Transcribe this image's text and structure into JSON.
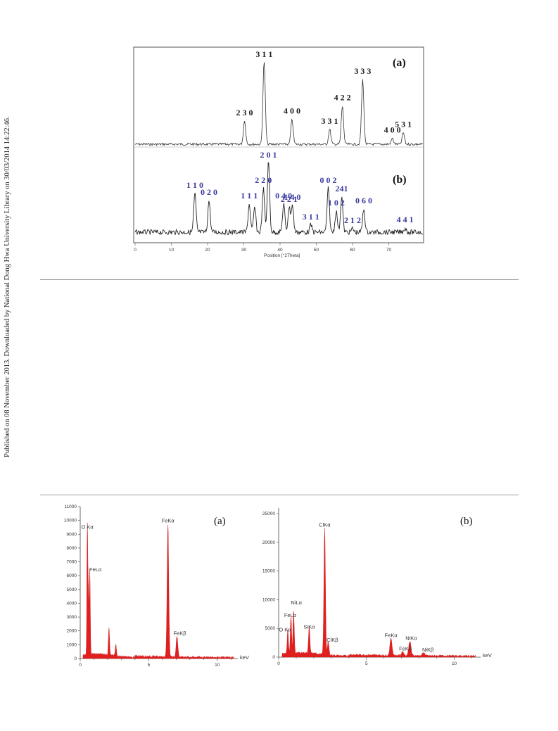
{
  "side_note": "Published on 08 November 2013. Downloaded by National Dong Hwa University Library on 30/03/2014 14:22:46.",
  "xrd": {
    "x_axis_title": "Position [°2Theta]",
    "x_ticks": [
      "0",
      "10",
      "20",
      "30",
      "40",
      "50",
      "60",
      "70"
    ],
    "panel_a": {
      "tag": "(a)",
      "peaks": [
        {
          "two_theta": 30.2,
          "height": 0.28,
          "label": "2 3 0"
        },
        {
          "two_theta": 35.6,
          "height": 1.0,
          "label": "3 1 1"
        },
        {
          "two_theta": 43.3,
          "height": 0.3,
          "label": "4 0 0"
        },
        {
          "two_theta": 53.7,
          "height": 0.18,
          "label": "3 3 1"
        },
        {
          "two_theta": 57.2,
          "height": 0.46,
          "label": "4 2 2"
        },
        {
          "two_theta": 62.8,
          "height": 0.78,
          "label": "3 3 3"
        },
        {
          "two_theta": 71.0,
          "height": 0.07,
          "label": "4 0 0"
        },
        {
          "two_theta": 74.0,
          "height": 0.14,
          "label": "5 3 1"
        }
      ]
    },
    "panel_b": {
      "tag": "(b)",
      "peaks": [
        {
          "two_theta": 16.5,
          "height": 0.55,
          "label": "1 1 0"
        },
        {
          "two_theta": 20.4,
          "height": 0.45,
          "label": "0 2 0"
        },
        {
          "two_theta": 31.5,
          "height": 0.4,
          "label": "1 1 1"
        },
        {
          "two_theta": 33.0,
          "height": 0.35,
          "label": ""
        },
        {
          "two_theta": 35.4,
          "height": 0.62,
          "label": "2 2 0"
        },
        {
          "two_theta": 36.8,
          "height": 1.0,
          "label": "2 0 1"
        },
        {
          "two_theta": 41.0,
          "height": 0.4,
          "label": "0 4 0"
        },
        {
          "two_theta": 42.5,
          "height": 0.35,
          "label": "2 2 1"
        },
        {
          "two_theta": 43.4,
          "height": 0.38,
          "label": "1 4 0"
        },
        {
          "two_theta": 48.5,
          "height": 0.1,
          "label": "3 1 1"
        },
        {
          "two_theta": 53.3,
          "height": 0.62,
          "label": "0 0 2"
        },
        {
          "two_theta": 55.5,
          "height": 0.3,
          "label": "1 0 2"
        },
        {
          "two_theta": 57.0,
          "height": 0.5,
          "label": "241"
        },
        {
          "two_theta": 60.0,
          "height": 0.05,
          "label": "2 1 2"
        },
        {
          "two_theta": 63.1,
          "height": 0.33,
          "label": "0 6 0"
        },
        {
          "two_theta": 74.5,
          "height": 0.06,
          "label": "4 4 1"
        }
      ]
    }
  },
  "eds_a": {
    "tag": "(a)",
    "unit": "keV",
    "y_ticks": [
      "0",
      "1000",
      "2000",
      "3000",
      "4000",
      "5000",
      "6000",
      "7000",
      "8000",
      "9000",
      "10000",
      "11000"
    ],
    "x_ticks": [
      "0",
      "5",
      "10"
    ],
    "chart_data": {
      "type": "area",
      "ylim": [
        0,
        11000
      ],
      "xlim": [
        0,
        11.5
      ],
      "peaks": [
        {
          "kev": 0.52,
          "counts": 9200,
          "label": "O Kα"
        },
        {
          "kev": 0.6,
          "counts": 4300,
          "label": ""
        },
        {
          "kev": 0.7,
          "counts": 6100,
          "label": "FeLα"
        },
        {
          "kev": 2.1,
          "counts": 2000,
          "label": ""
        },
        {
          "kev": 2.6,
          "counts": 800,
          "label": ""
        },
        {
          "kev": 6.4,
          "counts": 9600,
          "label": "FeKα"
        },
        {
          "kev": 7.06,
          "counts": 1500,
          "label": "FeKβ"
        }
      ]
    }
  },
  "eds_b": {
    "tag": "(b)",
    "unit": "keV",
    "y_ticks": [
      "0",
      "5000",
      "10000",
      "15000",
      "20000",
      "25000"
    ],
    "x_ticks": [
      "0",
      "5",
      "10"
    ],
    "chart_data": {
      "type": "area",
      "ylim": [
        0,
        26000
      ],
      "xlim": [
        0,
        11.5
      ],
      "peaks": [
        {
          "kev": 0.52,
          "counts": 4000,
          "label": "O Kα"
        },
        {
          "kev": 0.7,
          "counts": 6500,
          "label": "FeLα"
        },
        {
          "kev": 0.85,
          "counts": 7500,
          "label": "NiLα"
        },
        {
          "kev": 1.74,
          "counts": 4500,
          "label": "SiKα"
        },
        {
          "kev": 2.62,
          "counts": 22000,
          "label": "ClKα"
        },
        {
          "kev": 2.82,
          "counts": 2200,
          "label": "ClKβ"
        },
        {
          "kev": 6.4,
          "counts": 3000,
          "label": "FeKα"
        },
        {
          "kev": 7.06,
          "counts": 700,
          "label": "FeKβ"
        },
        {
          "kev": 7.47,
          "counts": 2500,
          "label": "NiKα"
        },
        {
          "kev": 8.26,
          "counts": 500,
          "label": "NiKβ"
        }
      ]
    }
  }
}
